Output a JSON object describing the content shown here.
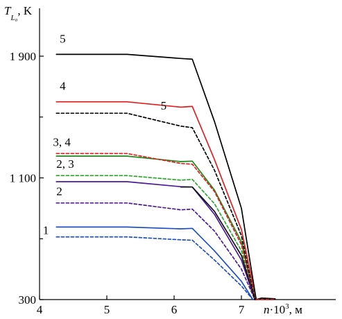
{
  "chart_data": {
    "type": "line",
    "title": "",
    "ylabel": {
      "symbol": "T",
      "subscript": "L₀",
      "unit": ", K"
    },
    "xlabel": {
      "symbol": "n",
      "factor": "·10",
      "exponent": "3",
      "unit": ", м"
    },
    "xlim": [
      4,
      7.5
    ],
    "ylim": [
      300,
      2200
    ],
    "x_ticks": [
      {
        "value": 4,
        "label": "4"
      },
      {
        "value": 5,
        "label": "5"
      },
      {
        "value": 6,
        "label": "6"
      },
      {
        "value": 7,
        "label": "7"
      }
    ],
    "y_ticks": [
      {
        "value": 300,
        "label": "300"
      },
      {
        "value": 1100,
        "label": "1 100"
      },
      {
        "value": 1900,
        "label": "1 900"
      }
    ],
    "y_minor_ticks": [
      700,
      1500
    ],
    "grid": false,
    "series": [
      {
        "id": "s1-solid",
        "color": "#1f4fbf",
        "dash": "solid",
        "x": [
          4.25,
          5.3,
          6.1,
          6.27,
          6.6,
          7.0,
          7.17
        ],
        "y": [
          777,
          777,
          765,
          768,
          620,
          420,
          300
        ]
      },
      {
        "id": "s1-dashed",
        "color": "#1f4fbf",
        "dash": "dashed",
        "x": [
          4.25,
          5.3,
          6.1,
          6.27,
          6.6,
          7.0,
          7.17
        ],
        "y": [
          712,
          712,
          693,
          690,
          560,
          390,
          300
        ]
      },
      {
        "id": "s2-solid",
        "color": "#4b1a9a",
        "dash": "solid",
        "x": [
          4.25,
          5.3,
          6.1,
          6.27,
          6.6,
          7.0,
          7.2
        ],
        "y": [
          1075,
          1075,
          1042,
          1040,
          860,
          560,
          300
        ]
      },
      {
        "id": "s2-dashed",
        "color": "#4b1a9a",
        "dash": "dashed",
        "x": [
          4.25,
          5.3,
          6.1,
          6.27,
          6.6,
          7.0,
          7.2
        ],
        "y": [
          935,
          935,
          890,
          895,
          750,
          500,
          300
        ]
      },
      {
        "id": "s3-solid",
        "color": "#1a8a1a",
        "dash": "solid",
        "x": [
          4.25,
          5.3,
          6.1,
          6.27,
          6.6,
          7.0,
          7.2
        ],
        "y": [
          1243,
          1243,
          1207,
          1210,
          1020,
          680,
          300
        ]
      },
      {
        "id": "s3-dashed",
        "color": "#2aa82a",
        "dash": "dashed",
        "x": [
          4.25,
          5.3,
          6.1,
          6.27,
          6.6,
          7.0,
          7.2
        ],
        "y": [
          1115,
          1115,
          1085,
          1090,
          930,
          620,
          300
        ]
      },
      {
        "id": "s3-black",
        "color": "#111111",
        "dash": "solid",
        "x": [
          6.1,
          6.27,
          6.6,
          7.0,
          7.2
        ],
        "y": [
          1040,
          1040,
          880,
          590,
          300
        ]
      },
      {
        "id": "s4-solid",
        "color": "#e02020",
        "dash": "solid",
        "x": [
          4.25,
          5.3,
          6.1,
          6.27,
          6.6,
          7.0,
          7.22
        ],
        "y": [
          1600,
          1600,
          1565,
          1570,
          1220,
          760,
          300
        ]
      },
      {
        "id": "s4-dashed",
        "color": "#e02020",
        "dash": "dashed",
        "x": [
          4.25,
          5.3,
          6.1,
          6.27,
          6.6,
          7.0,
          7.2
        ],
        "y": [
          1260,
          1260,
          1195,
          1190,
          1010,
          660,
          300
        ]
      },
      {
        "id": "s5-solid",
        "color": "#000000",
        "dash": "solid",
        "x": [
          4.25,
          5.3,
          6.1,
          6.27,
          6.6,
          7.0,
          7.22,
          7.3,
          7.5
        ],
        "y": [
          1912,
          1912,
          1885,
          1880,
          1470,
          900,
          300,
          310,
          305
        ]
      },
      {
        "id": "s5-dashed",
        "color": "#000000",
        "dash": "dashed",
        "x": [
          4.25,
          5.3,
          6.1,
          6.27,
          6.6,
          7.0,
          7.2,
          7.3,
          7.5
        ],
        "y": [
          1525,
          1525,
          1440,
          1430,
          1150,
          720,
          300,
          307,
          303
        ]
      },
      {
        "id": "tail-red",
        "color": "#e02020",
        "dash": "dashed",
        "x": [
          7.22,
          7.5
        ],
        "y": [
          300,
          300
        ]
      }
    ],
    "curve_labels": [
      {
        "text": "5",
        "x": 4.3,
        "y": 1990
      },
      {
        "text": "4",
        "x": 4.3,
        "y": 1680
      },
      {
        "text": "5",
        "x": 5.8,
        "y": 1550
      },
      {
        "text": "3, 4",
        "x": 4.2,
        "y": 1310
      },
      {
        "text": "2, 3",
        "x": 4.25,
        "y": 1165
      },
      {
        "text": "2",
        "x": 4.25,
        "y": 985
      },
      {
        "text": "1",
        "x": 4.05,
        "y": 730
      }
    ]
  }
}
